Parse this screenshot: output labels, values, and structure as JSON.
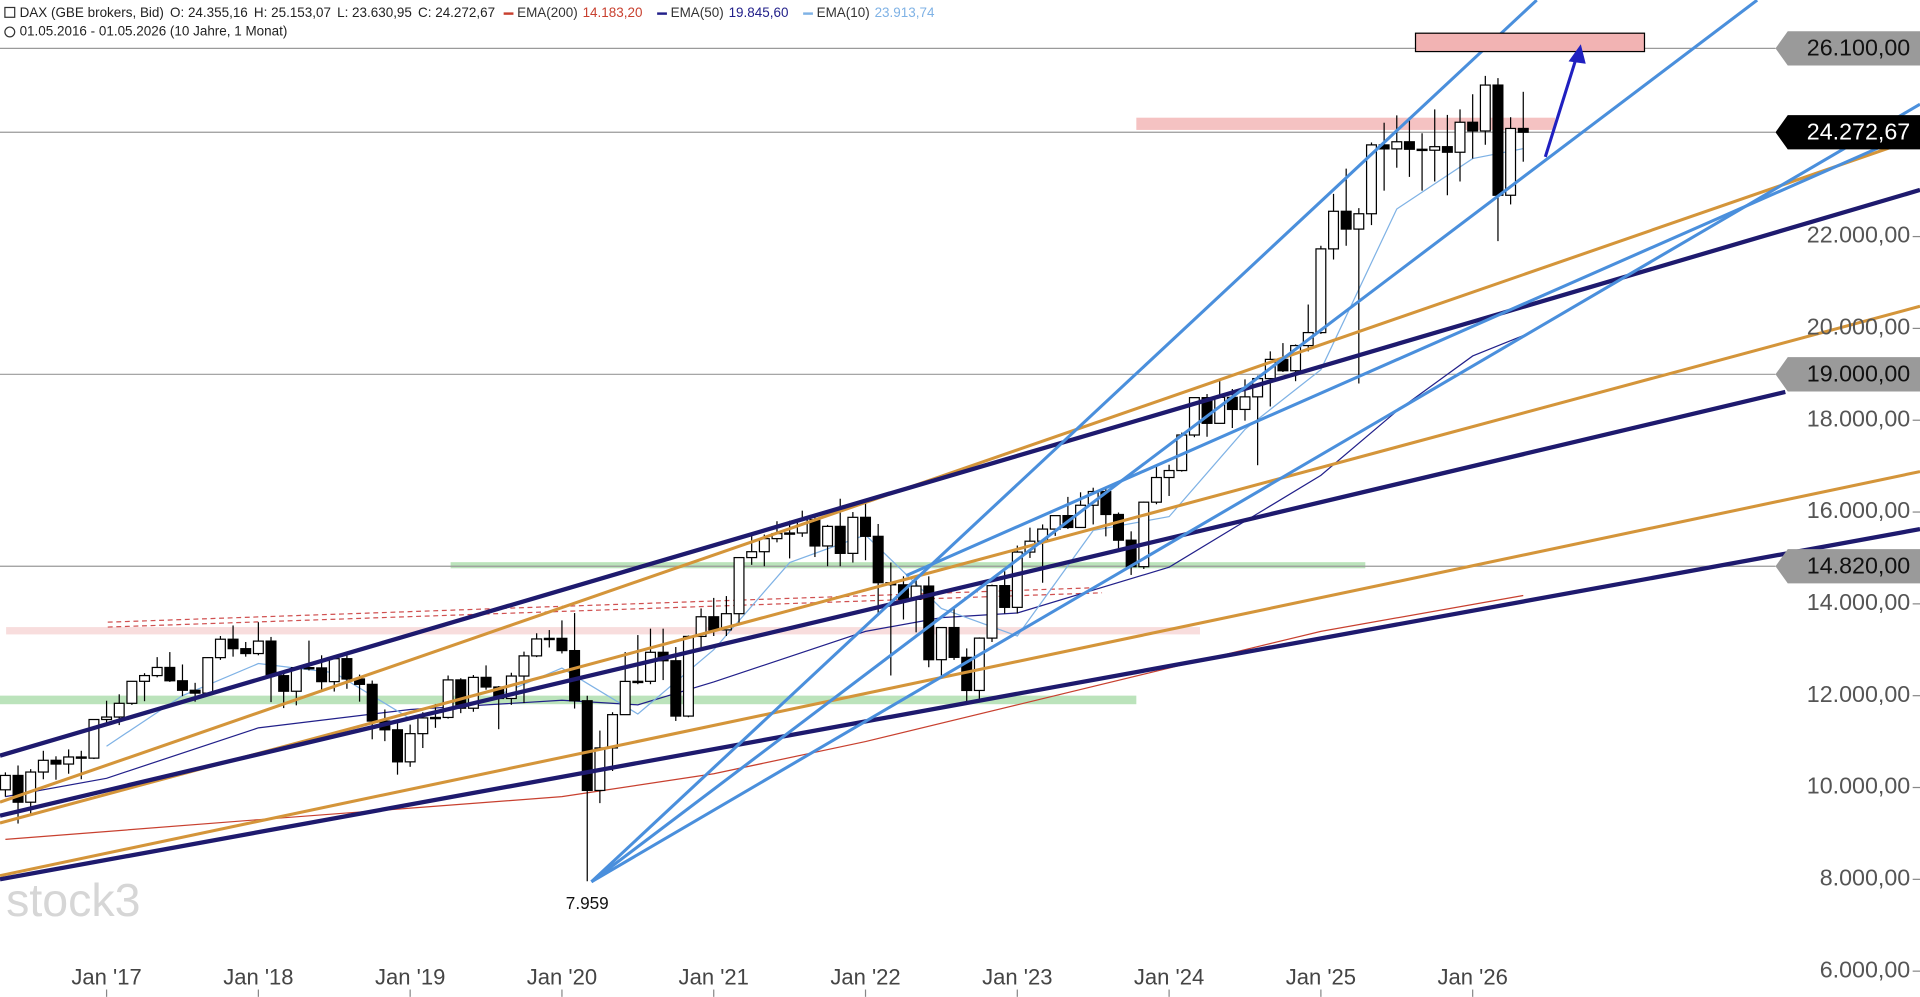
{
  "chart_data": {
    "type": "candlestick",
    "title": "DAX (GBE brokers, Bid)",
    "ohlc_labels": [
      "O: 24.355,16",
      "H: 25.153,07",
      "L: 23.630,95",
      "C: 24.272,67"
    ],
    "subtitle": "01.05.2016 - 01.05.2026  (10 Jahre, 1 Monat)",
    "watermark": "stock3",
    "x": [
      "2016-05",
      "2016-06",
      "2016-07",
      "2016-08",
      "2016-09",
      "2016-10",
      "2016-11",
      "2016-12",
      "2017-01",
      "2017-02",
      "2017-03",
      "2017-04",
      "2017-05",
      "2017-06",
      "2017-07",
      "2017-08",
      "2017-09",
      "2017-10",
      "2017-11",
      "2017-12",
      "2018-01",
      "2018-02",
      "2018-03",
      "2018-04",
      "2018-05",
      "2018-06",
      "2018-07",
      "2018-08",
      "2018-09",
      "2018-10",
      "2018-11",
      "2018-12",
      "2019-01",
      "2019-02",
      "2019-03",
      "2019-04",
      "2019-05",
      "2019-06",
      "2019-07",
      "2019-08",
      "2019-09",
      "2019-10",
      "2019-11",
      "2019-12",
      "2020-01",
      "2020-02",
      "2020-03",
      "2020-04",
      "2020-05",
      "2020-06",
      "2020-07",
      "2020-08",
      "2020-09",
      "2020-10",
      "2020-11",
      "2020-12",
      "2021-01",
      "2021-02",
      "2021-03",
      "2021-04",
      "2021-05",
      "2021-06",
      "2021-07",
      "2021-08",
      "2021-09",
      "2021-10",
      "2021-11",
      "2021-12",
      "2022-01",
      "2022-02",
      "2022-03",
      "2022-04",
      "2022-05",
      "2022-06",
      "2022-07",
      "2022-08",
      "2022-09",
      "2022-10",
      "2022-11",
      "2022-12",
      "2023-01",
      "2023-02",
      "2023-03",
      "2023-04",
      "2023-05",
      "2023-06",
      "2023-07",
      "2023-08",
      "2023-09",
      "2023-10",
      "2023-11",
      "2023-12",
      "2024-01",
      "2024-02",
      "2024-03",
      "2024-04",
      "2024-05",
      "2024-06",
      "2024-07",
      "2024-08",
      "2024-09",
      "2024-10",
      "2024-11",
      "2024-12",
      "2025-01",
      "2025-02",
      "2025-03",
      "2025-04",
      "2025-05",
      "2025-06",
      "2025-07",
      "2025-08",
      "2025-09",
      "2025-10",
      "2025-11",
      "2025-12",
      "2026-01",
      "2026-02",
      "2026-03",
      "2026-04",
      "2026-05"
    ],
    "open": [
      9950,
      10263,
      9680,
      10337,
      10593,
      10511,
      10665,
      10640,
      11481,
      11535,
      11834,
      12313,
      12438,
      12615,
      12325,
      12118,
      12056,
      12829,
      13230,
      13024,
      12918,
      13189,
      12436,
      12097,
      12612,
      12605,
      12306,
      12806,
      12364,
      12247,
      11447,
      11257,
      10559,
      11173,
      11516,
      11526,
      12344,
      11727,
      12399,
      12189,
      11939,
      12428,
      12867,
      13236,
      13249,
      12982,
      11890,
      9936,
      10862,
      11587,
      12311,
      12313,
      12945,
      12761,
      11556,
      13291,
      13719,
      13433,
      13786,
      15008,
      15136,
      15421,
      15531,
      15544,
      15835,
      15261,
      15688,
      15100,
      15885,
      15471,
      14461,
      14415,
      14098,
      14388,
      12784,
      13484,
      12835,
      12114,
      13254,
      14397,
      13924,
      15128,
      15365,
      15629,
      15922,
      15664,
      16148,
      16447,
      15947,
      15387,
      14810,
      16215,
      16752,
      16904,
      17678,
      18492,
      17932,
      18498,
      18235,
      18509,
      18907,
      19325,
      19078,
      19626,
      19909,
      21732,
      22551,
      22163,
      22497,
      23997,
      23910,
      24065,
      23902,
      23881,
      23958,
      23837,
      24490,
      24300,
      25300,
      22900,
      24355
    ],
    "high": [
      10330,
      10480,
      10400,
      10800,
      10680,
      10830,
      10800,
      11480,
      11890,
      12030,
      12320,
      12490,
      12840,
      12950,
      12680,
      12280,
      12840,
      13300,
      13530,
      13170,
      13600,
      13280,
      12480,
      12620,
      13200,
      12880,
      12860,
      12880,
      12460,
      12330,
      11700,
      11480,
      11370,
      11640,
      11820,
      12440,
      12380,
      12450,
      12660,
      12210,
      12500,
      12960,
      13360,
      13430,
      13640,
      13800,
      12000,
      11240,
      11640,
      12950,
      13320,
      13460,
      13460,
      13060,
      13310,
      13900,
      14130,
      14170,
      15020,
      15500,
      15510,
      15800,
      15810,
      16030,
      15920,
      15720,
      16290,
      16000,
      16290,
      15740,
      14900,
      14600,
      14600,
      14600,
      13480,
      13950,
      13030,
      13270,
      14420,
      14710,
      15270,
      15660,
      15730,
      15930,
      16330,
      16430,
      16530,
      16520,
      15990,
      15580,
      16230,
      17000,
      17030,
      17730,
      18500,
      18570,
      18890,
      18680,
      18890,
      18970,
      19500,
      19680,
      19650,
      20520,
      21800,
      22930,
      23480,
      22620,
      24050,
      24480,
      24640,
      24600,
      24250,
      24770,
      24650,
      24770,
      25100,
      25500,
      25450,
      24600,
      25153
    ],
    "low": [
      9800,
      9215,
      9380,
      10180,
      10170,
      10300,
      10180,
      10620,
      11380,
      11360,
      11800,
      11880,
      12400,
      12300,
      11990,
      11870,
      12020,
      12780,
      12850,
      12850,
      12880,
      11860,
      11730,
      11790,
      12550,
      12100,
      12090,
      12150,
      11870,
      11050,
      11010,
      10280,
      10450,
      10860,
      11300,
      11500,
      11620,
      11650,
      12130,
      11270,
      11800,
      11840,
      12840,
      13050,
      12920,
      11720,
      7959,
      9660,
      10360,
      11600,
      12250,
      12250,
      12340,
      11450,
      11530,
      13020,
      13300,
      13300,
      13560,
      14850,
      14820,
      15340,
      14990,
      15460,
      15020,
      14820,
      14820,
      14900,
      14950,
      13800,
      12440,
      13660,
      13380,
      12620,
      12400,
      12780,
      11860,
      11860,
      13170,
      13790,
      13790,
      15000,
      14460,
      15480,
      15630,
      15760,
      15730,
      15470,
      15130,
      14630,
      14760,
      16170,
      16350,
      16880,
      17630,
      17640,
      17950,
      17830,
      17990,
      17020,
      18300,
      19050,
      18850,
      19500,
      19880,
      21500,
      21800,
      18800,
      22250,
      23000,
      23500,
      23300,
      23000,
      23200,
      22900,
      23200,
      23700,
      24000,
      21900,
      22700,
      23631
    ],
    "close": [
      10263,
      9680,
      10337,
      10593,
      10511,
      10665,
      10640,
      11481,
      11535,
      11834,
      12313,
      12438,
      12615,
      12325,
      12118,
      12056,
      12829,
      13230,
      13024,
      12918,
      13189,
      12436,
      12097,
      12612,
      12605,
      12306,
      12806,
      12364,
      12247,
      11447,
      11257,
      10559,
      11173,
      11516,
      11526,
      12344,
      11727,
      12399,
      12189,
      11939,
      12428,
      12867,
      13236,
      13249,
      12982,
      11890,
      9936,
      10862,
      11587,
      12311,
      12313,
      12945,
      12761,
      11556,
      13291,
      13719,
      13433,
      13786,
      15008,
      15136,
      15421,
      15531,
      15544,
      15835,
      15261,
      15688,
      15100,
      15885,
      15471,
      14461,
      14415,
      14098,
      14388,
      12784,
      13484,
      12835,
      12114,
      13254,
      14397,
      13924,
      15128,
      15365,
      15629,
      15922,
      15664,
      16148,
      16447,
      15947,
      15387,
      14810,
      16215,
      16752,
      16904,
      17678,
      18492,
      17932,
      18498,
      18235,
      18509,
      18907,
      19325,
      19078,
      19626,
      19909,
      21732,
      22551,
      22163,
      22497,
      23997,
      23910,
      24065,
      23902,
      23881,
      23958,
      23837,
      24490,
      24300,
      25300,
      22900,
      24355,
      24273
    ],
    "indicators": [
      {
        "name": "EMA(200)",
        "value_label": "14.183,20",
        "color": "#c8402f",
        "x": [
          "2016-05",
          "2018-01",
          "2020-01",
          "2021-01",
          "2022-01",
          "2023-01",
          "2024-01",
          "2025-01",
          "2026-05"
        ],
        "values": [
          8870,
          9300,
          9800,
          10300,
          11000,
          11800,
          12600,
          13400,
          14183.2
        ]
      },
      {
        "name": "EMA(50)",
        "value_label": "19.845,60",
        "color": "#22208a",
        "x": [
          "2016-05",
          "2017-01",
          "2018-01",
          "2019-01",
          "2020-01",
          "2020-07",
          "2021-01",
          "2022-01",
          "2022-07",
          "2023-01",
          "2024-01",
          "2024-07",
          "2025-01",
          "2025-07",
          "2026-01",
          "2026-05"
        ],
        "values": [
          9800,
          10200,
          11300,
          11700,
          11900,
          11800,
          12300,
          13400,
          13700,
          13800,
          14800,
          15800,
          16800,
          18200,
          19400,
          19845.6
        ]
      },
      {
        "name": "EMA(10)",
        "value_label": "23.913,74",
        "color": "#7fb2e5",
        "x": [
          "2017-01",
          "2017-07",
          "2018-01",
          "2018-07",
          "2019-01",
          "2019-07",
          "2020-01",
          "2020-07",
          "2021-01",
          "2021-07",
          "2022-01",
          "2022-07",
          "2023-01",
          "2023-07",
          "2024-01",
          "2024-07",
          "2025-01",
          "2025-07",
          "2026-01",
          "2026-05"
        ],
        "values": [
          10900,
          12000,
          12700,
          12500,
          11500,
          11900,
          12600,
          11600,
          13000,
          14900,
          15500,
          13900,
          13300,
          15600,
          15900,
          17800,
          19100,
          22600,
          23700,
          23913.74
        ]
      }
    ],
    "ylim": [
      5440,
      27150
    ],
    "yticks": [
      {
        "value": 6000,
        "label": "6.000,00"
      },
      {
        "value": 8000,
        "label": "8.000,00"
      },
      {
        "value": 10000,
        "label": "10.000,00"
      },
      {
        "value": 12000,
        "label": "12.000,00"
      },
      {
        "value": 14000,
        "label": "14.000,00"
      },
      {
        "value": 16000,
        "label": "16.000,00"
      },
      {
        "value": 18000,
        "label": "18.000,00"
      },
      {
        "value": 20000,
        "label": "20.000,00"
      },
      {
        "value": 22000,
        "label": "22.000,00"
      }
    ],
    "xticks": [
      {
        "value": "2017-01",
        "label": "Jan '17"
      },
      {
        "value": "2018-01",
        "label": "Jan '18"
      },
      {
        "value": "2019-01",
        "label": "Jan '19"
      },
      {
        "value": "2020-01",
        "label": "Jan '20"
      },
      {
        "value": "2021-01",
        "label": "Jan '21"
      },
      {
        "value": "2022-01",
        "label": "Jan '22"
      },
      {
        "value": "2023-01",
        "label": "Jan '23"
      },
      {
        "value": "2024-01",
        "label": "Jan '24"
      },
      {
        "value": "2025-01",
        "label": "Jan '25"
      },
      {
        "value": "2026-01",
        "label": "Jan '26"
      }
    ],
    "levels": [
      {
        "value": 26100,
        "label": "26.100,00",
        "current": false
      },
      {
        "value": 24272.67,
        "label": "24.272,67",
        "current": true
      },
      {
        "value": 19000,
        "label": "19.000,00",
        "current": false
      },
      {
        "value": 14820,
        "label": "14.820,00",
        "current": false
      }
    ],
    "annotations": [
      {
        "x": "2020-03",
        "value": 7959,
        "label": "7.959"
      }
    ]
  }
}
